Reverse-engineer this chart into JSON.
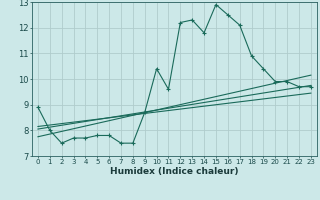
{
  "title": "",
  "xlabel": "Humidex (Indice chaleur)",
  "background_color": "#cce8e8",
  "grid_color": "#b0cccc",
  "line_color": "#1a6a5a",
  "xlim": [
    -0.5,
    23.5
  ],
  "ylim": [
    7,
    13
  ],
  "xticks": [
    0,
    1,
    2,
    3,
    4,
    5,
    6,
    7,
    8,
    9,
    10,
    11,
    12,
    13,
    14,
    15,
    16,
    17,
    18,
    19,
    20,
    21,
    22,
    23
  ],
  "yticks": [
    7,
    8,
    9,
    10,
    11,
    12,
    13
  ],
  "main_x": [
    0,
    1,
    2,
    3,
    4,
    5,
    6,
    7,
    8,
    9,
    10,
    11,
    12,
    13,
    14,
    15,
    16,
    17,
    18,
    19,
    20,
    21,
    22,
    23
  ],
  "main_y": [
    8.9,
    8.0,
    7.5,
    7.7,
    7.7,
    7.8,
    7.8,
    7.5,
    7.5,
    8.7,
    10.4,
    9.6,
    12.2,
    12.3,
    11.8,
    12.9,
    12.5,
    12.1,
    10.9,
    10.4,
    9.9,
    9.9,
    9.7,
    9.7
  ],
  "line1_x": [
    0,
    23
  ],
  "line1_y": [
    8.05,
    9.75
  ],
  "line2_x": [
    0,
    23
  ],
  "line2_y": [
    7.75,
    10.15
  ],
  "line3_x": [
    0,
    23
  ],
  "line3_y": [
    8.15,
    9.45
  ]
}
